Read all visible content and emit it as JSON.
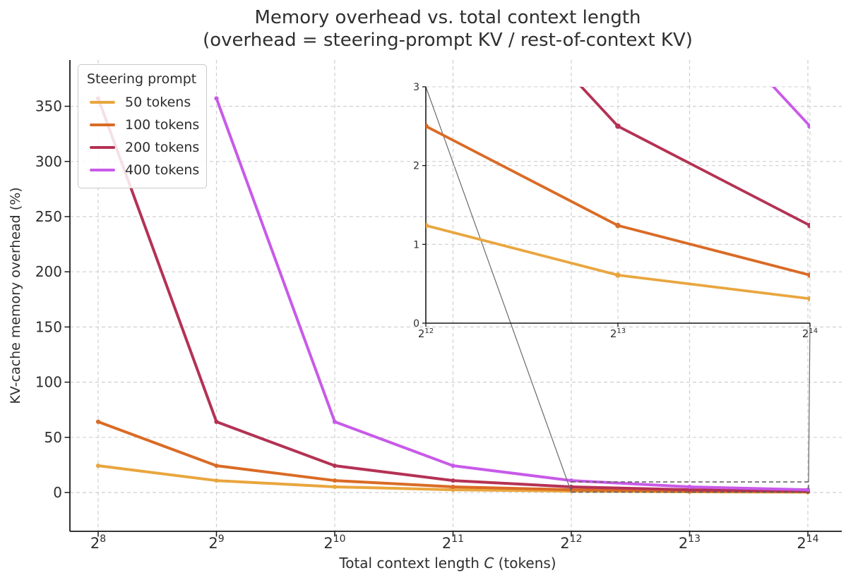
{
  "figure": {
    "background": "#ffffff"
  },
  "chart_data": {
    "type": "line",
    "title_line1": "Memory overhead vs. total context length",
    "title_line2": "(overhead = steering-prompt KV / rest-of-context KV)",
    "xlabel_pre": "Total context length ",
    "xlabel_var": "C",
    "xlabel_post": " (tokens)",
    "ylabel": "KV-cache memory overhead (%)",
    "x_tick_base": "2",
    "x_exponents": [
      8,
      9,
      10,
      11,
      12,
      13,
      14
    ],
    "y_ticks": [
      0,
      50,
      100,
      150,
      200,
      250,
      300,
      350
    ],
    "grid": true,
    "legend": {
      "title": "Steering prompt",
      "position": "upper left"
    },
    "series": [
      {
        "name": "50 tokens",
        "color": "#E9A63E",
        "values": [
          24.27,
          10.82,
          5.13,
          2.5,
          1.24,
          0.61,
          0.31
        ]
      },
      {
        "name": "100 tokens",
        "color": "#DA6B26",
        "values": [
          64.1,
          24.27,
          10.82,
          5.13,
          2.5,
          1.24,
          0.61
        ]
      },
      {
        "name": "200 tokens",
        "color": "#B43254",
        "values": [
          357.14,
          64.1,
          24.27,
          10.82,
          5.13,
          2.5,
          1.24
        ]
      },
      {
        "name": "400 tokens",
        "color": "#C85AE8",
        "values": [
          null,
          357.14,
          64.1,
          24.27,
          10.82,
          5.13,
          2.5
        ]
      }
    ],
    "inset": {
      "x_exponents": [
        12,
        13,
        14
      ],
      "y_ticks": [
        0,
        1,
        2,
        3
      ],
      "ylim": [
        0,
        3
      ],
      "zoom_region_note": "zoom of tail region 2^12..2^14, 0..3 %"
    }
  },
  "colors": {
    "grid": "#cfcfcf",
    "axis": "#1a1a1a",
    "text": "#2e2e2e",
    "indicator": "#5a5a5a"
  }
}
